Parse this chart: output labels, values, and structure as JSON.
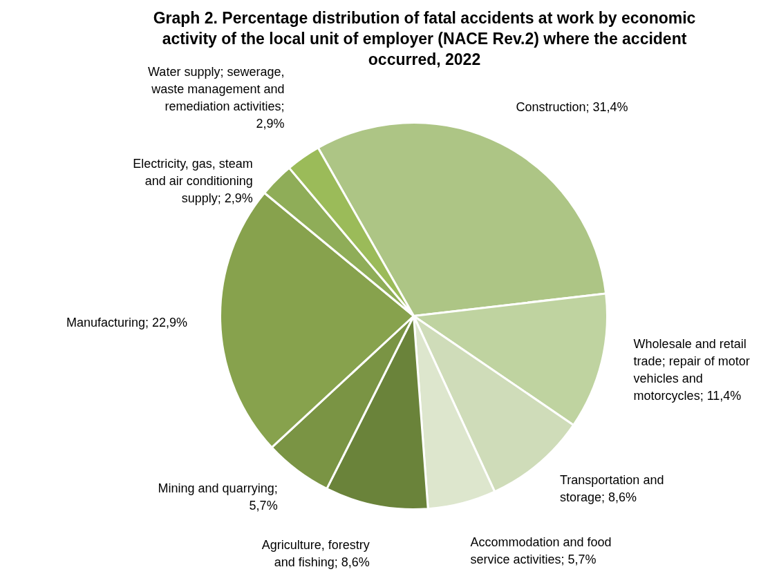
{
  "chart_data": {
    "type": "pie",
    "title": "Graph 2. Percentage distribution of fatal accidents at work by economic activity of the local unit of employer (NACE Rev.2) where the accident occurred, 2022",
    "categories": [
      "Construction; 31,4%",
      "Wholesale and retail trade; repair of motor vehicles and motorcycles; 11,4%",
      "Transportation and storage; 8,6%",
      "Accommodation and food service activities; 5,7%",
      "Agriculture, forestry and fishing; 8,6%",
      "Mining and quarrying; 5,7%",
      "Manufacturing; 22,9%",
      "Electricity, gas, steam and air conditioning supply; 2,9%",
      "Water supply; sewerage, waste management and remediation activities; 2,9%"
    ],
    "values": [
      31.4,
      11.4,
      8.6,
      5.7,
      8.6,
      5.7,
      22.9,
      2.9,
      2.9
    ],
    "colors": [
      "#adc585",
      "#bfd3a0",
      "#cfdcb9",
      "#dde6cd",
      "#6a833a",
      "#7a9444",
      "#87a24d",
      "#8fad58",
      "#9bbb59"
    ]
  }
}
